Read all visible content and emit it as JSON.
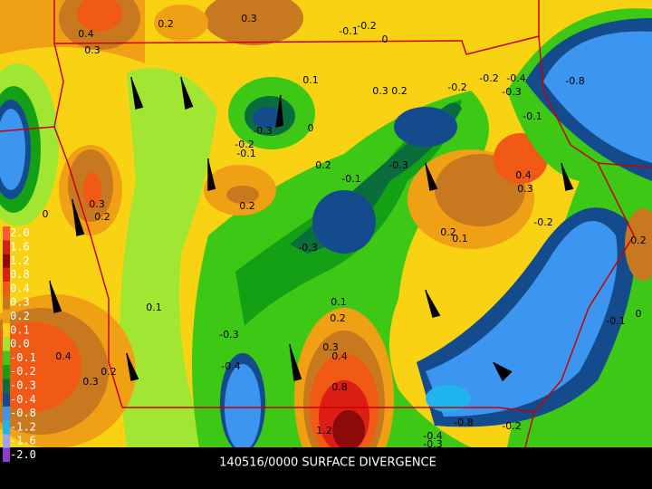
{
  "legend": [
    {
      "label": "2.0",
      "color": "#ff5a3c"
    },
    {
      "label": "1.6",
      "color": "#d21e1e"
    },
    {
      "label": "1.2",
      "color": "#8c0a0a"
    },
    {
      "label": "0.8",
      "color": "#dc1e14"
    },
    {
      "label": "0.4",
      "color": "#f05a14"
    },
    {
      "label": "0.3",
      "color": "#c8781e"
    },
    {
      "label": "0.2",
      "color": "#f0a014"
    },
    {
      "label": "0.1",
      "color": "#fad214"
    },
    {
      "label": "0.0",
      "color": "#a0e632"
    },
    {
      "label": "-0.1",
      "color": "#3cc814"
    },
    {
      "label": "-0.2",
      "color": "#14a014"
    },
    {
      "label": "-0.3",
      "color": "#0a6e3c"
    },
    {
      "label": "-0.4",
      "color": "#144b8c"
    },
    {
      "label": "-0.8",
      "color": "#3c96f0"
    },
    {
      "label": "-1.2",
      "color": "#1eb4f0"
    },
    {
      "label": "-1.6",
      "color": "#a0a0ff"
    },
    {
      "label": "-2.0",
      "color": "#8c3cc8"
    }
  ],
  "contour_labels": [
    "0.4",
    "0.3",
    "0.2",
    "0.3",
    "-0.2",
    "0",
    "-0.1",
    "0.1",
    "0.3",
    "0.2",
    "-0.2",
    "-0.2",
    "-0.4",
    "-0.3",
    "-0.1",
    "-0.8",
    "-0.3",
    "0",
    "-0.2",
    "-0.1",
    "0.2",
    "-0.1",
    "-0.3",
    "0.4",
    "0.3",
    "0.3",
    "0.2",
    "0.2",
    "0.1",
    "0.2",
    "-0.3",
    "-0.2",
    "0.2",
    "0.1",
    "0.1",
    "0.2",
    "-0.1",
    "0",
    "-0.3",
    "-0.4",
    "0.3",
    "0.4",
    "0.4",
    "0.3",
    "0.2",
    "0.8",
    "-0.8",
    "-0.2",
    "1.2",
    "-0.4",
    "-0.3",
    "0"
  ],
  "caption": "140516/0000 SURFACE DIVERGENCE"
}
